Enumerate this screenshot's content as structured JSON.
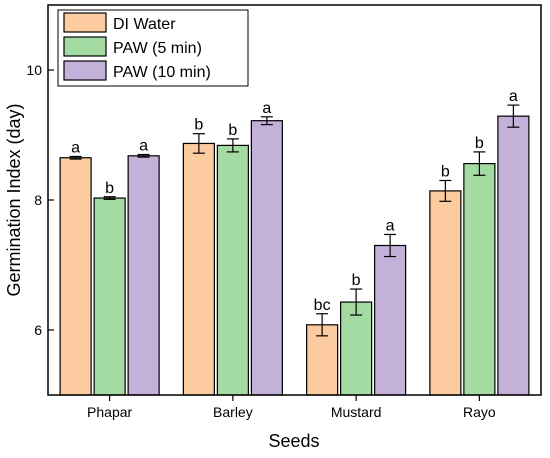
{
  "chart_data": {
    "type": "bar",
    "xlabel": "Seeds",
    "ylabel": "Germination Index (day)",
    "ylim": [
      5,
      11
    ],
    "yticks": [
      6,
      8,
      10
    ],
    "categories": [
      "Phapar",
      "Barley",
      "Mustard",
      "Rayo"
    ],
    "legend_position": "top-left",
    "grid": false,
    "series": [
      {
        "name": "DI Water",
        "color": "#FCCB9F",
        "values": [
          8.65,
          8.87,
          6.08,
          8.14
        ],
        "errors": [
          0.02,
          0.15,
          0.17,
          0.16
        ],
        "labels": [
          "a",
          "b",
          "bc",
          "b"
        ]
      },
      {
        "name": "PAW (5 min)",
        "color": "#A3DBA3",
        "values": [
          8.03,
          8.84,
          6.43,
          8.56
        ],
        "errors": [
          0.02,
          0.1,
          0.2,
          0.18
        ],
        "labels": [
          "b",
          "b",
          "b",
          "b"
        ]
      },
      {
        "name": "PAW (10 min)",
        "color": "#C3B1DA",
        "values": [
          8.68,
          9.22,
          7.3,
          9.29
        ],
        "errors": [
          0.02,
          0.06,
          0.17,
          0.17
        ],
        "labels": [
          "a",
          "a",
          "a",
          "a"
        ]
      }
    ]
  }
}
